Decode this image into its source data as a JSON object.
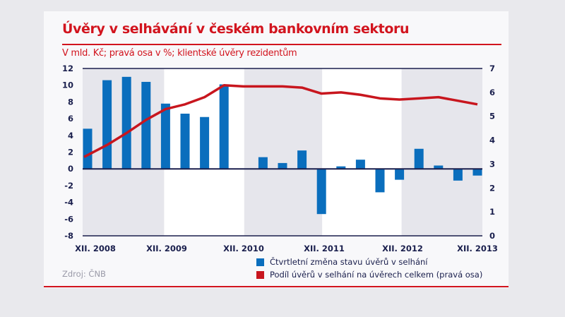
{
  "title": "Úvěry v selhávání v českém bankovním sektoru",
  "subtitle": "V mld. Kč; pravá osa v %; klientské úvěry rezidentům",
  "source": "Zdroj: ČNB",
  "colors": {
    "accent": "#d2141e",
    "bars": "#0a6ebd",
    "line": "#c8161e",
    "shade": "#e6e6ec"
  },
  "chart_data": {
    "type": "bar",
    "title": "Úvěry v selhávání v českém bankovním sektoru",
    "x_tick_labels": [
      "XII. 2008",
      "XII. 2009",
      "XII. 2010",
      "XII. 2011",
      "XII. 2012",
      "XII. 2013"
    ],
    "categories": [
      "XII. 2008",
      "III. 2009",
      "VI. 2009",
      "IX. 2009",
      "XII. 2009",
      "III. 2010",
      "VI. 2010",
      "IX. 2010",
      "XII. 2010",
      "III. 2011",
      "VI. 2011",
      "IX. 2011",
      "XII. 2011",
      "III. 2012",
      "VI. 2012",
      "IX. 2012",
      "XII. 2012",
      "III. 2013",
      "VI. 2013",
      "IX. 2013",
      "XII. 2013"
    ],
    "left_axis": {
      "ylim": [
        -8,
        12
      ],
      "ticks": [
        -8,
        -6,
        -4,
        -2,
        0,
        2,
        4,
        6,
        8,
        10,
        12
      ]
    },
    "right_axis": {
      "ylim": [
        0,
        7
      ],
      "ticks": [
        0,
        1,
        2,
        3,
        4,
        5,
        6,
        7
      ]
    },
    "grid": false,
    "legend_placement": "bottom-right",
    "series": [
      {
        "name": "Čtvrtletní změna stavu úvěrů v selhání",
        "type": "bar",
        "axis": "left",
        "values": [
          4.8,
          10.6,
          11.0,
          10.4,
          7.8,
          6.6,
          6.2,
          10.1,
          0.0,
          1.4,
          0.7,
          2.2,
          -5.4,
          0.3,
          1.1,
          -2.8,
          -1.3,
          2.4,
          0.4,
          -1.4,
          -0.8
        ]
      },
      {
        "name": "Podíl úvěrů v selhání na úvěrech celkem (pravá osa)",
        "type": "line",
        "axis": "right",
        "values": [
          3.3,
          3.8,
          4.3,
          4.85,
          5.3,
          5.5,
          5.8,
          6.3,
          6.25,
          6.25,
          6.25,
          6.2,
          5.95,
          6.0,
          5.9,
          5.75,
          5.7,
          5.75,
          5.8,
          5.65,
          5.5
        ]
      }
    ]
  }
}
